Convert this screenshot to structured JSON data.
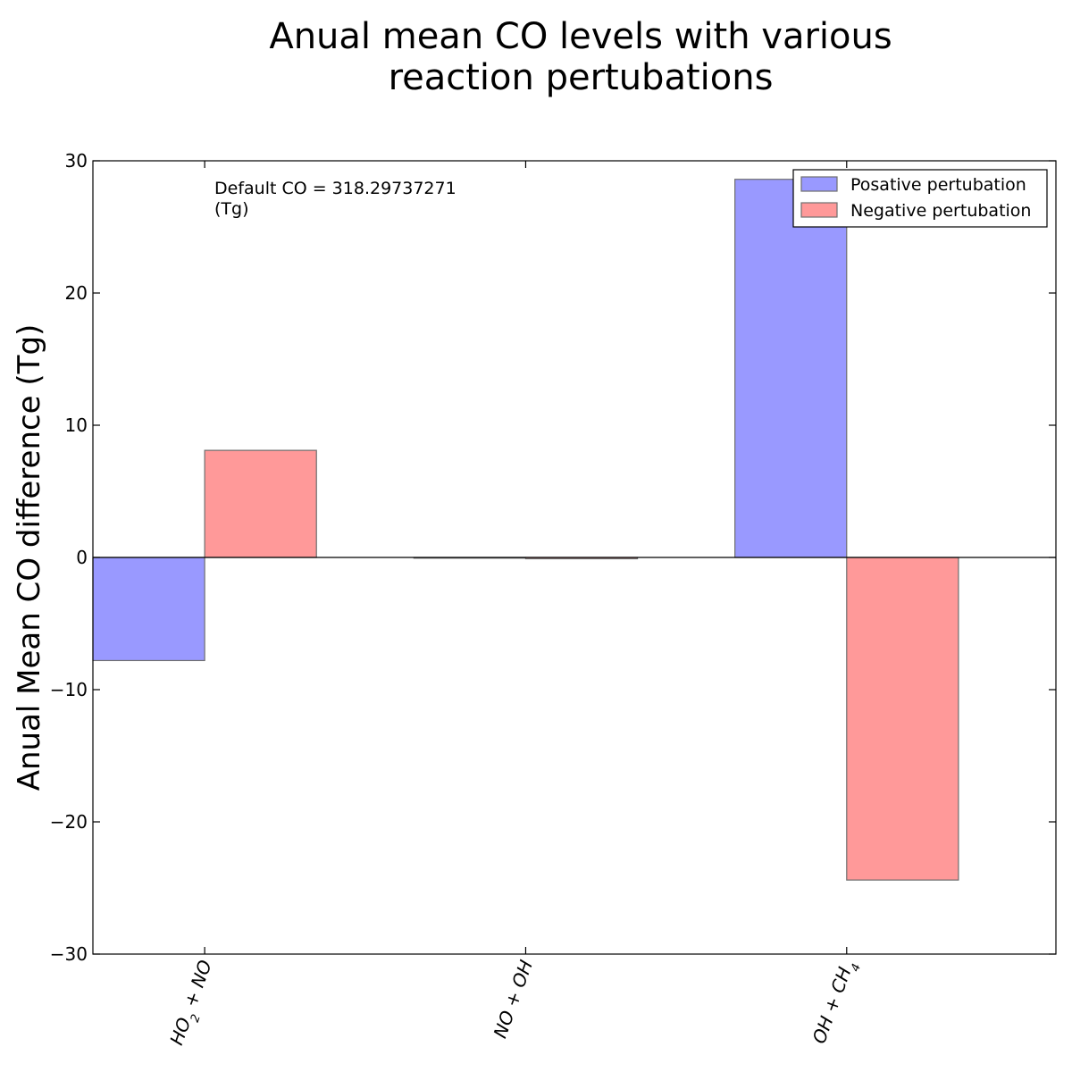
{
  "chart_data": {
    "type": "bar",
    "title_lines": [
      "Anual mean CO levels with  various",
      "reaction pertubations"
    ],
    "ylabel": "Anual Mean CO difference (Tg)",
    "xlabel": "",
    "ylim": [
      -30,
      30
    ],
    "yticks": [
      -30,
      -20,
      -10,
      0,
      10,
      20,
      30
    ],
    "ytick_labels": [
      "−30",
      "−20",
      "−10",
      "0",
      "10",
      "20",
      "30"
    ],
    "categories": [
      "HO2 + NO",
      "NO + OH",
      "OH + CH4"
    ],
    "category_labels": [
      {
        "parts": [
          {
            "t": "HO"
          },
          {
            "t": "2",
            "sub": true
          },
          {
            "t": " + NO"
          }
        ]
      },
      {
        "parts": [
          {
            "t": "NO + OH"
          }
        ]
      },
      {
        "parts": [
          {
            "t": "OH + CH"
          },
          {
            "t": "4",
            "sub": true
          }
        ]
      }
    ],
    "series": [
      {
        "name": "Posative pertubation",
        "values": [
          -7.8,
          0.0,
          28.6
        ],
        "color": "#9999ff"
      },
      {
        "name": "Negative pertubation",
        "values": [
          8.1,
          -0.1,
          -24.4
        ],
        "color": "#ff9999"
      }
    ],
    "annotation_lines": [
      "Default CO  = 318.29737271",
      " (Tg)"
    ],
    "legend_position": "top-right",
    "grid": false
  }
}
